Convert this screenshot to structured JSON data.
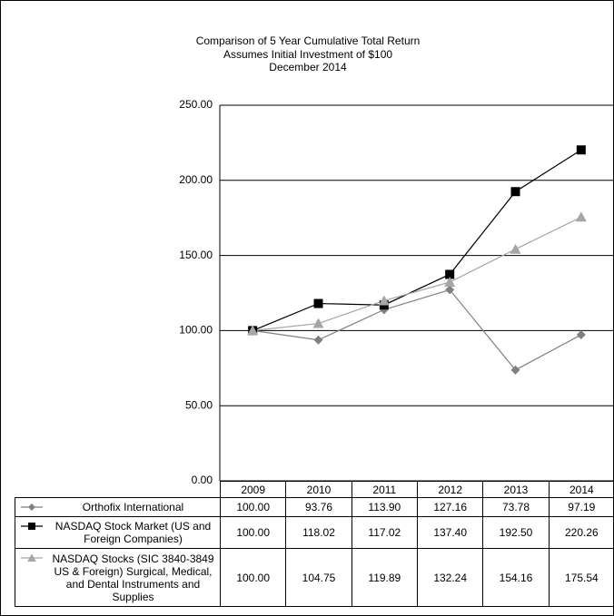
{
  "chart_data": {
    "type": "line",
    "title": "Comparison of 5 Year Cumulative Total Return",
    "subtitle_lines": [
      "Assumes Initial Investment of $100",
      "December 2014"
    ],
    "categories": [
      "2009",
      "2010",
      "2011",
      "2012",
      "2013",
      "2014"
    ],
    "ylim": [
      0,
      250
    ],
    "yticks": [
      {
        "value": 0,
        "label": "0.00"
      },
      {
        "value": 50,
        "label": "50.00"
      },
      {
        "value": 100,
        "label": "100.00"
      },
      {
        "value": 150,
        "label": "150.00"
      },
      {
        "value": 200,
        "label": "200.00"
      },
      {
        "value": 250,
        "label": "250.00"
      }
    ],
    "grid": true,
    "series": [
      {
        "name": "Orthofix International",
        "color": "#808080",
        "marker": "diamond",
        "values": [
          100,
          93.76,
          113.9,
          127.16,
          73.78,
          97.19
        ],
        "value_labels": [
          "100.00",
          "93.76",
          "113.90",
          "127.16",
          "73.78",
          "97.19"
        ]
      },
      {
        "name": "NASDAQ Stock Market (US and Foreign Companies)",
        "color": "#000000",
        "marker": "square",
        "values": [
          100,
          118.02,
          117.02,
          137.4,
          192.5,
          220.26
        ],
        "value_labels": [
          "100.00",
          "118.02",
          "117.02",
          "137.40",
          "192.50",
          "220.26"
        ]
      },
      {
        "name": "NASDAQ Stocks (SIC 3840-3849 US & Foreign) Surgical, Medical, and Dental Instruments and Supplies",
        "color": "#a6a6a6",
        "marker": "triangle",
        "values": [
          100,
          104.75,
          119.89,
          132.24,
          154.16,
          175.54
        ],
        "value_labels": [
          "100.00",
          "104.75",
          "119.89",
          "132.24",
          "154.16",
          "175.54"
        ]
      }
    ]
  }
}
